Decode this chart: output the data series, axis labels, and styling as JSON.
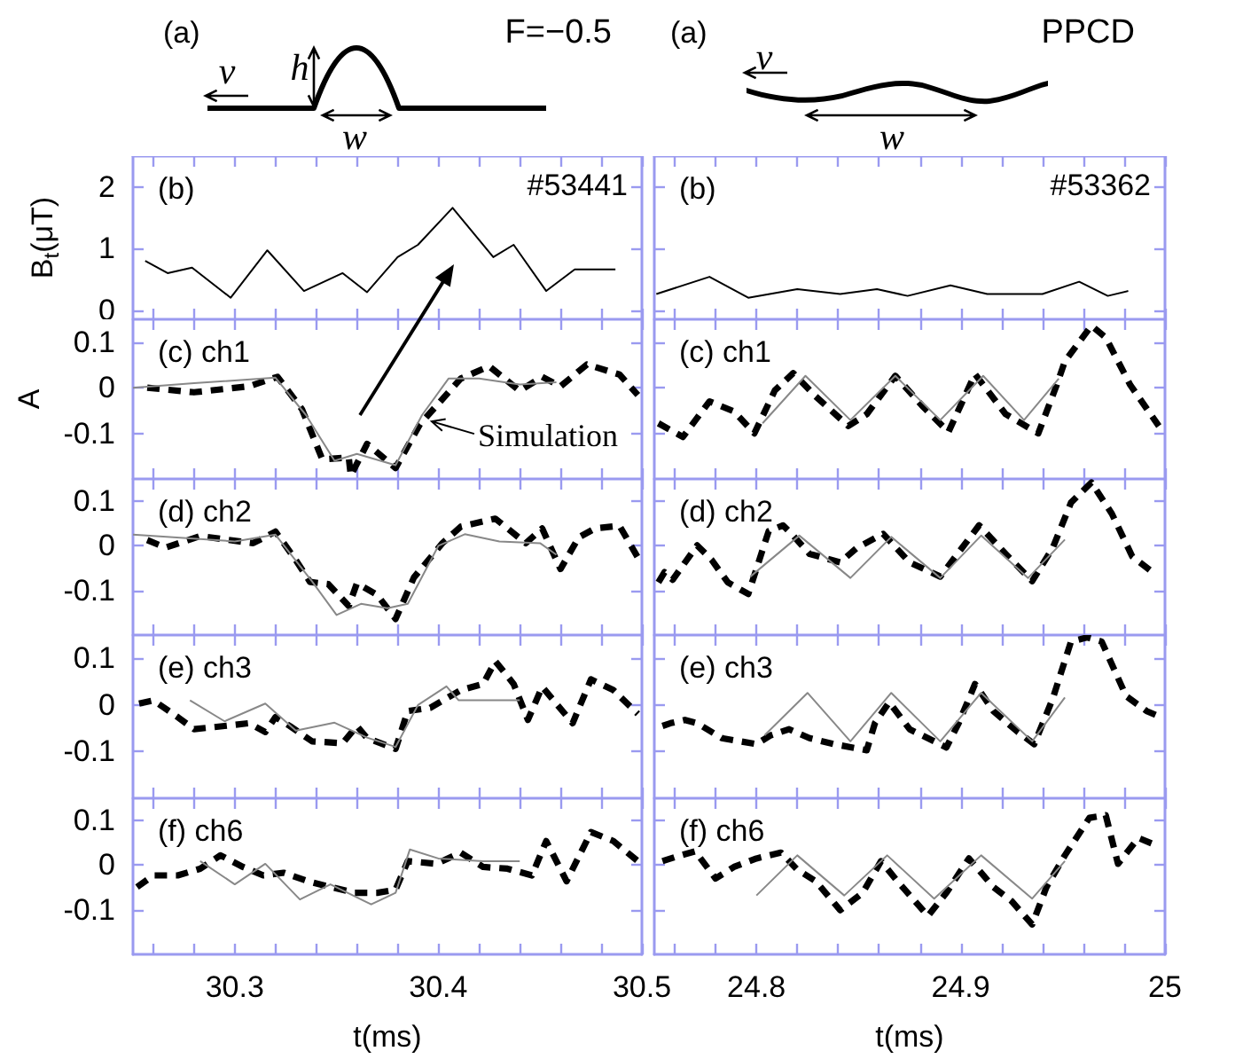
{
  "chart_data": [
    {
      "type": "other",
      "annotations": [
        "(a)",
        "F=−0.5",
        "v",
        "h",
        "w"
      ]
    },
    {
      "type": "other",
      "annotations": [
        "(a)",
        "PPCD",
        "v",
        "w"
      ]
    },
    {
      "type": "line",
      "title": "(b)",
      "annotations": [
        "#53441"
      ],
      "ylabel": "B$_{t}$(μT)",
      "xlim": [
        30.25,
        30.5
      ],
      "ylim": [
        -0.15,
        2.5
      ],
      "yticks": [
        0,
        1,
        2
      ],
      "tick_labels": "y",
      "xticks": [
        {
          "value": 30.26,
          "label": null
        },
        {
          "value": 30.28,
          "label": null
        },
        30.3,
        {
          "value": 30.32,
          "label": null
        },
        {
          "value": 30.34,
          "label": null
        },
        {
          "value": 30.36,
          "label": null
        },
        {
          "value": 30.38,
          "label": null
        },
        30.4,
        {
          "value": 30.42,
          "label": null
        },
        {
          "value": 30.44,
          "label": null
        },
        {
          "value": 30.46,
          "label": null
        },
        {
          "value": 30.48,
          "label": null
        },
        30.5
      ],
      "series": [
        {
          "color": "#000000",
          "line_style": "solid",
          "x": [
            30.256,
            30.267,
            30.279,
            30.298,
            30.316,
            30.334,
            30.353,
            30.365,
            30.38,
            30.39,
            30.407,
            30.427,
            30.437,
            30.453,
            30.467,
            30.487
          ],
          "values": [
            0.8,
            0.6,
            0.69,
            0.2,
            0.97,
            0.31,
            0.6,
            0.29,
            0.86,
            1.06,
            1.66,
            0.86,
            1.06,
            0.31,
            0.66,
            0.66
          ]
        }
      ]
    },
    {
      "type": "line",
      "title": "(b)",
      "annotations": [
        "#53362"
      ],
      "xlim": [
        24.75,
        25
      ],
      "ylim": [
        -0.15,
        2.5
      ],
      "yticks": [
        0,
        1,
        2
      ],
      "tick_labels": false,
      "xticks": [
        {
          "value": 24.76,
          "label": null
        },
        {
          "value": 24.78,
          "label": null
        },
        24.8,
        {
          "value": 24.82,
          "label": null
        },
        {
          "value": 24.84,
          "label": null
        },
        {
          "value": 24.86,
          "label": null
        },
        {
          "value": 24.88,
          "label": null
        },
        24.9,
        {
          "value": 24.92,
          "label": null
        },
        {
          "value": 24.94,
          "label": null
        },
        {
          "value": 24.96,
          "label": null
        },
        {
          "value": 24.98,
          "label": null
        },
        25
      ],
      "series": [
        {
          "color": "#000000",
          "line_style": "solid",
          "x": [
            24.751,
            24.777,
            24.796,
            24.82,
            24.841,
            24.859,
            24.874,
            24.895,
            24.913,
            24.94,
            24.958,
            24.972,
            24.982
          ],
          "values": [
            0.26,
            0.54,
            0.2,
            0.34,
            0.26,
            0.34,
            0.23,
            0.4,
            0.26,
            0.26,
            0.46,
            0.23,
            0.31
          ]
        }
      ]
    },
    {
      "type": "line",
      "title": "(c) ch1",
      "annotations": [
        {
          "text": "Simulation",
          "x": 30.395,
          "y": -0.07
        }
      ],
      "ylabel": "A",
      "xlim": [
        30.25,
        30.5
      ],
      "ylim": [
        -0.2,
        0.15
      ],
      "yticks": [
        -0.1,
        0,
        0.1
      ],
      "tick_labels": "y",
      "xticks": [
        {
          "value": 30.26,
          "label": null
        },
        {
          "value": 30.28,
          "label": null
        },
        30.3,
        {
          "value": 30.32,
          "label": null
        },
        {
          "value": 30.34,
          "label": null
        },
        {
          "value": 30.36,
          "label": null
        },
        {
          "value": 30.38,
          "label": null
        },
        30.4,
        {
          "value": 30.42,
          "label": null
        },
        {
          "value": 30.44,
          "label": null
        },
        {
          "value": 30.46,
          "label": null
        },
        {
          "value": 30.48,
          "label": null
        },
        30.5
      ],
      "series": [
        {
          "color": "#000000",
          "line_style": "dashed",
          "x": [
            30.257,
            30.28,
            30.307,
            30.321,
            30.333,
            30.343,
            30.356,
            30.357,
            30.365,
            30.379,
            30.391,
            30.399,
            30.411,
            30.425,
            30.44,
            30.451,
            30.46,
            30.473,
            30.489,
            30.498
          ],
          "values": [
            0,
            -0.01,
            0.003,
            0.024,
            -0.047,
            -0.157,
            -0.153,
            -0.193,
            -0.123,
            -0.176,
            -0.08,
            -0.04,
            0.02,
            0.047,
            -0.007,
            0.024,
            0.003,
            0.051,
            0.029,
            -0.016
          ]
        },
        {
          "color": "#888888",
          "line_style": "solid",
          "x": [
            30.25,
            30.28,
            30.32,
            30.335,
            30.349,
            30.36,
            30.379,
            30.392,
            30.405,
            30.42,
            30.44,
            30.458
          ],
          "values": [
            0,
            0.01,
            0.022,
            -0.06,
            -0.16,
            -0.145,
            -0.17,
            -0.06,
            0.02,
            0.02,
            0.007,
            0.012
          ]
        }
      ]
    },
    {
      "type": "line",
      "title": "(c) ch1",
      "xlim": [
        24.75,
        25
      ],
      "ylim": [
        -0.2,
        0.15
      ],
      "yticks": [
        -0.1,
        0,
        0.1
      ],
      "tick_labels": false,
      "xticks": [
        {
          "value": 24.76,
          "label": null
        },
        {
          "value": 24.78,
          "label": null
        },
        24.8,
        {
          "value": 24.82,
          "label": null
        },
        {
          "value": 24.84,
          "label": null
        },
        {
          "value": 24.86,
          "label": null
        },
        {
          "value": 24.88,
          "label": null
        },
        24.9,
        {
          "value": 24.92,
          "label": null
        },
        {
          "value": 24.94,
          "label": null
        },
        {
          "value": 24.96,
          "label": null
        },
        {
          "value": 24.98,
          "label": null
        },
        25
      ],
      "series": [
        {
          "color": "#000000",
          "line_style": "dashed",
          "x": [
            24.752,
            24.764,
            24.777,
            24.789,
            24.799,
            24.809,
            24.818,
            24.829,
            24.845,
            24.854,
            24.868,
            24.881,
            24.894,
            24.907,
            24.922,
            24.938,
            24.947,
            24.951,
            24.964,
            24.971,
            24.983,
            24.997
          ],
          "values": [
            -0.078,
            -0.108,
            -0.03,
            -0.052,
            -0.1,
            -0.006,
            0.032,
            -0.019,
            -0.084,
            -0.058,
            0.026,
            -0.039,
            -0.097,
            0.03,
            -0.058,
            -0.1,
            0.006,
            0.058,
            0.136,
            0.11,
            0.006,
            -0.084
          ]
        },
        {
          "color": "#888888",
          "line_style": "solid",
          "x": [
            24.803,
            24.824,
            24.846,
            24.868,
            24.89,
            24.911,
            24.931,
            24.948
          ],
          "values": [
            -0.078,
            0.026,
            -0.071,
            0.026,
            -0.071,
            0.026,
            -0.071,
            0.02
          ]
        }
      ]
    },
    {
      "type": "line",
      "title": "(d) ch2",
      "xlim": [
        30.25,
        30.5
      ],
      "ylim": [
        -0.2,
        0.15
      ],
      "yticks": [
        -0.1,
        0,
        0.1
      ],
      "tick_labels": "y",
      "xticks": [
        {
          "value": 30.26,
          "label": null
        },
        {
          "value": 30.28,
          "label": null
        },
        30.3,
        {
          "value": 30.32,
          "label": null
        },
        {
          "value": 30.34,
          "label": null
        },
        {
          "value": 30.36,
          "label": null
        },
        {
          "value": 30.38,
          "label": null
        },
        30.4,
        {
          "value": 30.42,
          "label": null
        },
        {
          "value": 30.44,
          "label": null
        },
        {
          "value": 30.46,
          "label": null
        },
        {
          "value": 30.48,
          "label": null
        },
        30.5
      ],
      "series": [
        {
          "color": "#000000",
          "line_style": "dashed",
          "x": [
            30.257,
            30.266,
            30.283,
            30.309,
            30.32,
            30.33,
            30.337,
            30.346,
            30.356,
            30.36,
            30.37,
            30.379,
            30.388,
            30.402,
            30.411,
            30.428,
            30.443,
            30.451,
            30.46,
            30.469,
            30.477,
            30.489,
            30.498
          ],
          "values": [
            0.013,
            -0.004,
            0.022,
            0.006,
            0.032,
            -0.032,
            -0.081,
            -0.086,
            -0.135,
            -0.084,
            -0.11,
            -0.164,
            -0.071,
            0.006,
            0.043,
            0.061,
            0.006,
            0.039,
            -0.052,
            0.019,
            0.039,
            0.045,
            -0.026
          ]
        },
        {
          "color": "#888888",
          "line_style": "solid",
          "x": [
            30.25,
            30.3,
            30.32,
            30.338,
            30.35,
            30.362,
            30.375,
            30.385,
            30.4,
            30.413,
            30.43,
            30.45,
            30.458
          ],
          "values": [
            0.025,
            0.01,
            0.025,
            -0.08,
            -0.155,
            -0.13,
            -0.14,
            -0.13,
            0,
            0.026,
            0.01,
            0.006,
            -0.02
          ]
        }
      ]
    },
    {
      "type": "line",
      "title": "(d) ch2",
      "xlim": [
        24.75,
        25
      ],
      "ylim": [
        -0.2,
        0.15
      ],
      "yticks": [
        -0.1,
        0,
        0.1
      ],
      "tick_labels": false,
      "xticks": [
        {
          "value": 24.76,
          "label": null
        },
        {
          "value": 24.78,
          "label": null
        },
        24.8,
        {
          "value": 24.82,
          "label": null
        },
        {
          "value": 24.84,
          "label": null
        },
        {
          "value": 24.86,
          "label": null
        },
        {
          "value": 24.88,
          "label": null
        },
        24.9,
        {
          "value": 24.92,
          "label": null
        },
        {
          "value": 24.94,
          "label": null
        },
        {
          "value": 24.96,
          "label": null
        },
        {
          "value": 24.98,
          "label": null
        },
        25
      ],
      "series": [
        {
          "color": "#000000",
          "line_style": "dashed",
          "x": [
            24.752,
            24.755,
            24.759,
            24.771,
            24.778,
            24.786,
            24.796,
            24.806,
            24.813,
            24.818,
            24.826,
            24.841,
            24.849,
            24.862,
            24.875,
            24.89,
            24.909,
            24.922,
            24.935,
            24.945,
            24.954,
            24.964,
            24.974,
            24.984,
            24.995
          ],
          "values": [
            -0.082,
            -0.059,
            -0.076,
            0.001,
            -0.031,
            -0.082,
            -0.108,
            0.033,
            0.046,
            0.023,
            -0.018,
            -0.037,
            -0.005,
            0.027,
            -0.037,
            -0.069,
            0.046,
            -0.018,
            -0.079,
            -0.005,
            0.097,
            0.142,
            0.072,
            -0.024,
            -0.063
          ]
        },
        {
          "color": "#888888",
          "line_style": "solid",
          "x": [
            24.797,
            24.821,
            24.846,
            24.866,
            24.89,
            24.91,
            24.933,
            24.951
          ],
          "values": [
            -0.069,
            0.023,
            -0.072,
            0.02,
            -0.072,
            0.023,
            -0.072,
            0.014
          ]
        }
      ]
    },
    {
      "type": "line",
      "title": "(e) ch3",
      "xlim": [
        30.25,
        30.5
      ],
      "ylim": [
        -0.2,
        0.15
      ],
      "yticks": [
        -0.1,
        0,
        0.1
      ],
      "tick_labels": "y",
      "xticks": [
        {
          "value": 30.26,
          "label": null
        },
        {
          "value": 30.28,
          "label": null
        },
        30.3,
        {
          "value": 30.32,
          "label": null
        },
        {
          "value": 30.34,
          "label": null
        },
        {
          "value": 30.36,
          "label": null
        },
        {
          "value": 30.38,
          "label": null
        },
        30.4,
        {
          "value": 30.42,
          "label": null
        },
        {
          "value": 30.44,
          "label": null
        },
        {
          "value": 30.46,
          "label": null
        },
        {
          "value": 30.48,
          "label": null
        },
        30.5
      ],
      "series": [
        {
          "color": "#000000",
          "line_style": "dashed",
          "x": [
            30.253,
            30.26,
            30.272,
            30.28,
            30.295,
            30.307,
            30.315,
            30.32,
            30.327,
            30.338,
            30.353,
            30.36,
            30.365,
            30.379,
            30.385,
            30.396,
            30.411,
            30.422,
            30.428,
            30.437,
            30.444,
            30.451,
            30.466,
            30.475,
            30.486,
            30.498
          ],
          "values": [
            0.003,
            0.01,
            -0.026,
            -0.052,
            -0.045,
            -0.039,
            -0.058,
            -0.026,
            -0.045,
            -0.078,
            -0.082,
            -0.045,
            -0.071,
            -0.094,
            -0.013,
            -0.006,
            0.032,
            0.045,
            0.094,
            0.045,
            -0.032,
            0.039,
            -0.039,
            0.055,
            0.032,
            -0.019
          ]
        },
        {
          "color": "#888888",
          "line_style": "solid",
          "x": [
            30.278,
            30.295,
            30.315,
            30.33,
            30.349,
            30.365,
            30.379,
            30.39,
            30.404,
            30.41,
            30.44
          ],
          "values": [
            0.01,
            -0.035,
            0.003,
            -0.055,
            -0.038,
            -0.07,
            -0.09,
            0,
            0.04,
            0.01,
            0.01
          ]
        }
      ]
    },
    {
      "type": "line",
      "title": "(e) ch3",
      "xlim": [
        24.75,
        25
      ],
      "ylim": [
        -0.2,
        0.15
      ],
      "yticks": [
        -0.1,
        0,
        0.1
      ],
      "tick_labels": false,
      "xticks": [
        {
          "value": 24.76,
          "label": null
        },
        {
          "value": 24.78,
          "label": null
        },
        24.8,
        {
          "value": 24.82,
          "label": null
        },
        {
          "value": 24.84,
          "label": null
        },
        {
          "value": 24.86,
          "label": null
        },
        {
          "value": 24.88,
          "label": null
        },
        24.9,
        {
          "value": 24.92,
          "label": null
        },
        {
          "value": 24.94,
          "label": null
        },
        {
          "value": 24.96,
          "label": null
        },
        {
          "value": 24.98,
          "label": null
        },
        25
      ],
      "series": [
        {
          "color": "#000000",
          "line_style": "dashed",
          "x": [
            24.754,
            24.758,
            24.765,
            24.771,
            24.783,
            24.8,
            24.807,
            24.816,
            24.826,
            24.838,
            24.854,
            24.858,
            24.865,
            24.875,
            24.893,
            24.899,
            24.907,
            24.916,
            24.928,
            24.936,
            24.945,
            24.954,
            24.962,
            24.969,
            24.981,
            24.991,
            24.998
          ],
          "values": [
            -0.045,
            -0.039,
            -0.032,
            -0.039,
            -0.071,
            -0.084,
            -0.065,
            -0.052,
            -0.071,
            -0.084,
            -0.097,
            -0.039,
            0.006,
            -0.052,
            -0.091,
            -0.039,
            0.045,
            -0.013,
            -0.058,
            -0.084,
            0.013,
            0.136,
            0.145,
            0.136,
            0.019,
            -0.013,
            -0.026
          ]
        },
        {
          "color": "#888888",
          "line_style": "solid",
          "x": [
            24.804,
            24.825,
            24.846,
            24.866,
            24.89,
            24.91,
            24.935,
            24.951
          ],
          "values": [
            -0.065,
            0.026,
            -0.078,
            0.026,
            -0.078,
            0.026,
            -0.078,
            0.016
          ]
        }
      ]
    },
    {
      "type": "line",
      "title": "(f) ch6",
      "xlabel": "t(ms)",
      "xlim": [
        30.25,
        30.5
      ],
      "ylim": [
        -0.2,
        0.15
      ],
      "yticks": [
        -0.1,
        0,
        0.1
      ],
      "xticks": [
        {
          "value": 30.26,
          "label": null
        },
        {
          "value": 30.28,
          "label": null
        },
        30.3,
        {
          "value": 30.32,
          "label": null
        },
        {
          "value": 30.34,
          "label": null
        },
        {
          "value": 30.36,
          "label": null
        },
        {
          "value": 30.38,
          "label": null
        },
        30.4,
        {
          "value": 30.42,
          "label": null
        },
        {
          "value": 30.44,
          "label": null
        },
        {
          "value": 30.46,
          "label": null
        },
        {
          "value": 30.48,
          "label": null
        },
        30.5
      ],
      "series": [
        {
          "color": "#000000",
          "line_style": "dashed",
          "x": [
            30.252,
            30.26,
            30.272,
            30.283,
            30.293,
            30.304,
            30.314,
            30.324,
            30.336,
            30.347,
            30.359,
            30.37,
            30.379,
            30.385,
            30.399,
            30.411,
            30.422,
            30.434,
            30.446,
            30.453,
            30.463,
            30.475,
            30.486,
            30.498
          ],
          "values": [
            -0.049,
            -0.023,
            -0.023,
            -0.008,
            0.022,
            -0.004,
            -0.023,
            -0.017,
            -0.036,
            -0.049,
            -0.062,
            -0.062,
            -0.055,
            0.009,
            0.003,
            0.028,
            -0.004,
            -0.008,
            -0.023,
            0.054,
            -0.036,
            0.074,
            0.054,
            0.009
          ]
        },
        {
          "color": "#888888",
          "line_style": "solid",
          "x": [
            30.283,
            30.3,
            30.315,
            30.332,
            30.347,
            30.367,
            30.379,
            30.386,
            30.4,
            30.422,
            30.44
          ],
          "values": [
            0.009,
            -0.043,
            0.003,
            -0.077,
            -0.043,
            -0.088,
            -0.062,
            0.035,
            0.015,
            0.009,
            0.009
          ]
        }
      ]
    },
    {
      "type": "line",
      "title": "(f) ch6",
      "xlabel": "t(ms)",
      "xlim": [
        24.75,
        25
      ],
      "ylim": [
        -0.2,
        0.15
      ],
      "yticks": [
        -0.1,
        0,
        0.1
      ],
      "tick_labels": "x",
      "xticks": [
        {
          "value": 24.76,
          "label": null
        },
        {
          "value": 24.78,
          "label": null
        },
        24.8,
        {
          "value": 24.82,
          "label": null
        },
        {
          "value": 24.84,
          "label": null
        },
        {
          "value": 24.86,
          "label": null
        },
        {
          "value": 24.88,
          "label": null
        },
        24.9,
        {
          "value": 24.92,
          "label": null
        },
        {
          "value": 24.94,
          "label": null
        },
        {
          "value": 24.96,
          "label": null
        },
        {
          "value": 24.98,
          "label": null
        },
        25
      ],
      "series": [
        {
          "color": "#000000",
          "line_style": "dashed",
          "x": [
            24.754,
            24.76,
            24.77,
            24.78,
            24.789,
            24.8,
            24.812,
            24.82,
            24.829,
            24.841,
            24.852,
            24.861,
            24.869,
            24.884,
            24.893,
            24.904,
            24.916,
            24.925,
            24.935,
            24.942,
            24.951,
            24.963,
            24.971,
            24.977,
            24.987,
            24.996
          ],
          "values": [
            0.009,
            0.018,
            0.031,
            -0.03,
            -0.004,
            0.015,
            0.028,
            -0.01,
            -0.036,
            -0.101,
            -0.062,
            0.009,
            -0.036,
            -0.114,
            -0.062,
            0.015,
            -0.049,
            -0.081,
            -0.133,
            -0.049,
            0.022,
            0.106,
            0.112,
            0.003,
            0.061,
            0.044
          ]
        },
        {
          "color": "#888888",
          "line_style": "solid",
          "x": [
            24.8,
            24.82,
            24.843,
            24.864,
            24.887,
            24.91,
            24.935,
            24.951
          ],
          "values": [
            -0.068,
            0.022,
            -0.068,
            0.022,
            -0.075,
            0.022,
            -0.075,
            0.009
          ]
        }
      ]
    }
  ]
}
